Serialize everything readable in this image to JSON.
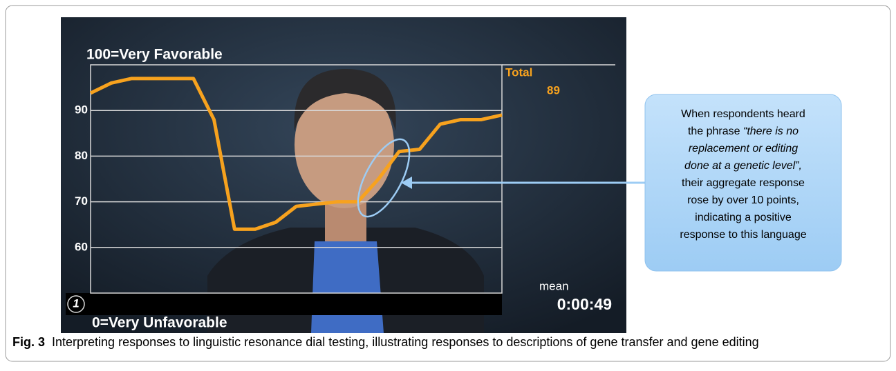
{
  "chart_data": {
    "type": "line",
    "top_label": "100=Very Favorable",
    "bottom_label": "0=Very Unfavorable",
    "series_label": "Total",
    "current_value": "89",
    "statistic_label": "mean",
    "timer": "0:00:49",
    "badge": "1",
    "categories": [
      null,
      null,
      null,
      null,
      null,
      null,
      null,
      null,
      null,
      null,
      null,
      null,
      null,
      null,
      null,
      null,
      null,
      null,
      null,
      null,
      null
    ],
    "values": [
      93.8,
      96,
      97,
      97,
      97,
      97,
      88,
      64,
      64,
      65.5,
      69,
      69.5,
      70,
      70,
      75,
      81,
      81.5,
      87,
      88,
      88,
      89
    ],
    "color": "#f7a21e",
    "ylim": [
      50,
      100
    ],
    "yticks": [
      60,
      70,
      80,
      90
    ],
    "grid": true,
    "callout_lines": [
      [
        {
          "text": "When respondents heard",
          "italic": false
        }
      ],
      [
        {
          "text": "the phrase ",
          "italic": false
        },
        {
          "text": "“there is no",
          "italic": true
        }
      ],
      [
        {
          "text": "replacement or editing",
          "italic": true
        }
      ],
      [
        {
          "text": "done at a genetic level”,",
          "italic": true
        }
      ],
      [
        {
          "text": "their aggregate response",
          "italic": false
        }
      ],
      [
        {
          "text": "rose by over 10 points,",
          "italic": false
        }
      ],
      [
        {
          "text": "indicating a positive",
          "italic": false
        }
      ],
      [
        {
          "text": "response to this language",
          "italic": false
        }
      ]
    ],
    "caption_label": "Fig. 3",
    "caption": "Interpreting responses to linguistic resonance dial testing, illustrating responses to descriptions of gene transfer and gene editing"
  }
}
